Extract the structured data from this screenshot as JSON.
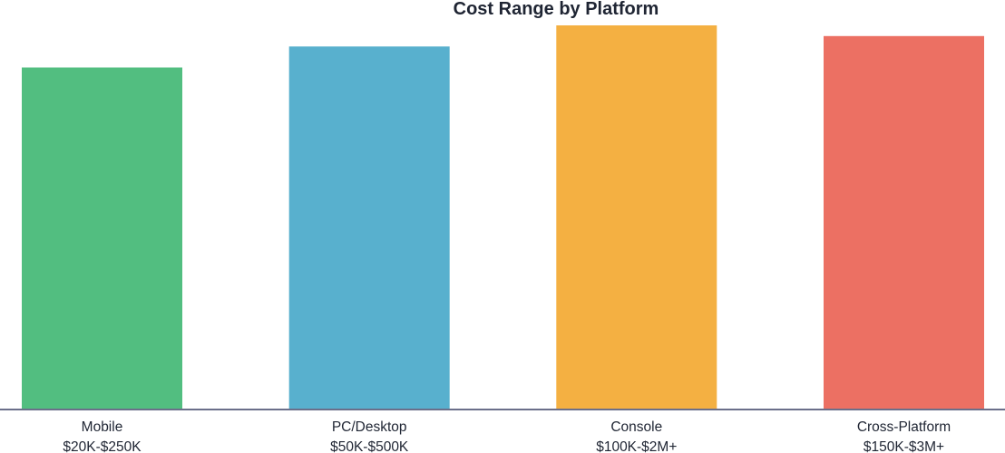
{
  "chart_data": {
    "type": "bar",
    "title": "Cost Range by Platform",
    "xlabel": "",
    "ylabel": "",
    "categories": [
      "Mobile",
      "PC/Desktop",
      "Console",
      "Cross-Platform"
    ],
    "range_labels": [
      "$20K-$250K",
      "$50K-$500K",
      "$100K-$2M+",
      "$150K-$3M+"
    ],
    "values": [
      8.9,
      9.45,
      10.0,
      9.72
    ],
    "ylim": [
      0,
      10
    ],
    "colors": [
      "#52be80",
      "#58b0ce",
      "#f4b042",
      "#ec7063"
    ],
    "grid": false,
    "legend": "none"
  }
}
